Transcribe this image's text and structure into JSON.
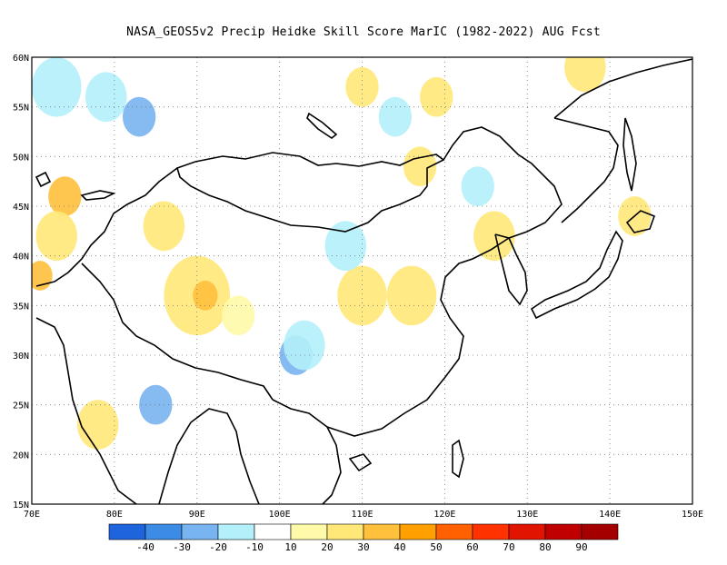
{
  "title": "NASA_GEOS5v2 Precip Heidke Skill Score MarIC (1982-2022) AUG Fcst",
  "map": {
    "lat_ticks": [
      "60N",
      "55N",
      "50N",
      "45N",
      "40N",
      "35N",
      "30N",
      "25N",
      "20N",
      "15N"
    ],
    "lon_ticks": [
      "70E",
      "80E",
      "90E",
      "100E",
      "110E",
      "120E",
      "130E",
      "140E",
      "150E"
    ],
    "lat_range": [
      15,
      60
    ],
    "lon_range": [
      70,
      150
    ],
    "gridlines": "dotted"
  },
  "colorbar": {
    "colors": [
      "#1e64dc",
      "#3c8ce6",
      "#78b4f0",
      "#b4f0fa",
      "#ffffff",
      "#fffaaa",
      "#ffe878",
      "#ffc03c",
      "#ffa000",
      "#ff6000",
      "#ff3200",
      "#e11400",
      "#c00000",
      "#a50000"
    ],
    "labels": [
      "-40",
      "-30",
      "-20",
      "-10",
      "10",
      "20",
      "30",
      "40",
      "50",
      "60",
      "70",
      "80",
      "90"
    ]
  },
  "anomaly_patches": [
    {
      "lon": 73,
      "lat": 57,
      "r": 3,
      "level": "#b4f0fa"
    },
    {
      "lon": 79,
      "lat": 56,
      "r": 2.5,
      "level": "#b4f0fa"
    },
    {
      "lon": 83,
      "lat": 54,
      "r": 2,
      "level": "#78b4f0"
    },
    {
      "lon": 74,
      "lat": 46,
      "r": 2,
      "level": "#ffc03c"
    },
    {
      "lon": 73,
      "lat": 42,
      "r": 2.5,
      "level": "#ffe878"
    },
    {
      "lon": 86,
      "lat": 43,
      "r": 2.5,
      "level": "#ffe878"
    },
    {
      "lon": 90,
      "lat": 36,
      "r": 4,
      "level": "#ffe878"
    },
    {
      "lon": 91,
      "lat": 36,
      "r": 1.5,
      "level": "#ffc03c"
    },
    {
      "lon": 102,
      "lat": 30,
      "r": 2,
      "level": "#78b4f0"
    },
    {
      "lon": 103,
      "lat": 31,
      "r": 2.5,
      "level": "#b4f0fa"
    },
    {
      "lon": 110,
      "lat": 36,
      "r": 3,
      "level": "#ffe878"
    },
    {
      "lon": 116,
      "lat": 36,
      "r": 3,
      "level": "#ffe878"
    },
    {
      "lon": 108,
      "lat": 41,
      "r": 2.5,
      "level": "#b4f0fa"
    },
    {
      "lon": 117,
      "lat": 49,
      "r": 2,
      "level": "#ffe878"
    },
    {
      "lon": 110,
      "lat": 57,
      "r": 2,
      "level": "#ffe878"
    },
    {
      "lon": 119,
      "lat": 56,
      "r": 2,
      "level": "#ffe878"
    },
    {
      "lon": 126,
      "lat": 42,
      "r": 2.5,
      "level": "#ffe878"
    },
    {
      "lon": 137,
      "lat": 59,
      "r": 2.5,
      "level": "#ffe878"
    },
    {
      "lon": 114,
      "lat": 54,
      "r": 2,
      "level": "#b4f0fa"
    },
    {
      "lon": 85,
      "lat": 25,
      "r": 2,
      "level": "#78b4f0"
    },
    {
      "lon": 78,
      "lat": 23,
      "r": 2.5,
      "level": "#ffe878"
    },
    {
      "lon": 71,
      "lat": 38,
      "r": 1.5,
      "level": "#ffc03c"
    },
    {
      "lon": 95,
      "lat": 34,
      "r": 2,
      "level": "#fffaaa"
    },
    {
      "lon": 124,
      "lat": 47,
      "r": 2,
      "level": "#b4f0fa"
    },
    {
      "lon": 143,
      "lat": 44,
      "r": 2,
      "level": "#ffe878"
    }
  ]
}
